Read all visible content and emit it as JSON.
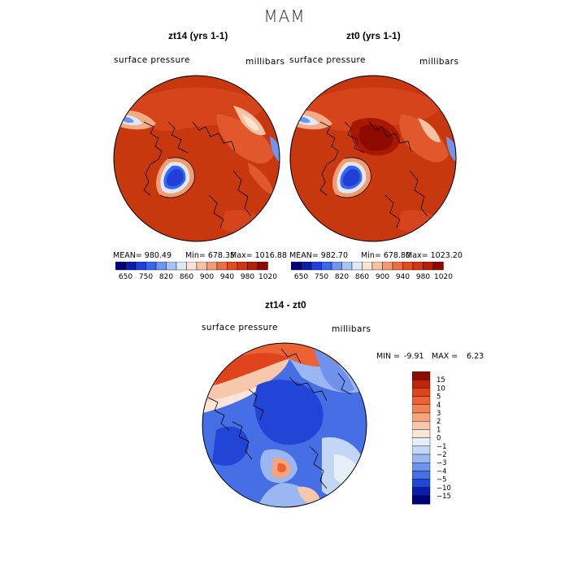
{
  "figure": {
    "season": "MAM"
  },
  "panels": [
    {
      "title": "zt14 (yrs 1-1)",
      "variable": "surface pressure",
      "units": "millibars",
      "stats": {
        "mean": "MEAN= 980.49",
        "min": "Min= 678.35",
        "max": "Max= 1016.88"
      }
    },
    {
      "title": "zt0 (yrs 1-1)",
      "variable": "surface pressure",
      "units": "millibars",
      "stats": {
        "mean": "MEAN= 982.70",
        "min": "Min= 678.80",
        "max": "Max= 1023.20"
      }
    }
  ],
  "top_colorbar": {
    "labels": [
      "650",
      "750",
      "820",
      "860",
      "900",
      "940",
      "980",
      "1020"
    ],
    "colors": [
      "#00007a",
      "#0a1ea8",
      "#1f3fd6",
      "#3a66e8",
      "#6f95ef",
      "#a9c3f4",
      "#dde8f8",
      "#f9e3d3",
      "#f6c2a3",
      "#f29c74",
      "#ea6f46",
      "#e04c25",
      "#d23512",
      "#b51f08",
      "#8c0a00"
    ]
  },
  "diff_panel": {
    "title": "zt14 - zt0",
    "variable": "surface pressure",
    "units": "millibars",
    "min_label": "MIN =",
    "min_value": "-9.91",
    "max_label": "MAX =",
    "max_value": "6.23"
  },
  "diff_colorbar": {
    "labels": [
      "15",
      "10",
      "5",
      "4",
      "3",
      "2",
      "1",
      "0",
      "−1",
      "−2",
      "−3",
      "−4",
      "−5",
      "−10",
      "−15"
    ],
    "colors": [
      "#8c0a00",
      "#c0250a",
      "#e0441d",
      "#ec6235",
      "#f28154",
      "#f5a47f",
      "#f8c8ad",
      "#fbe5d8",
      "#e6effa",
      "#c4d6f6",
      "#9bb7f1",
      "#6f93ec",
      "#466fe5",
      "#2245d8",
      "#0a1ea8",
      "#00007a"
    ]
  }
}
